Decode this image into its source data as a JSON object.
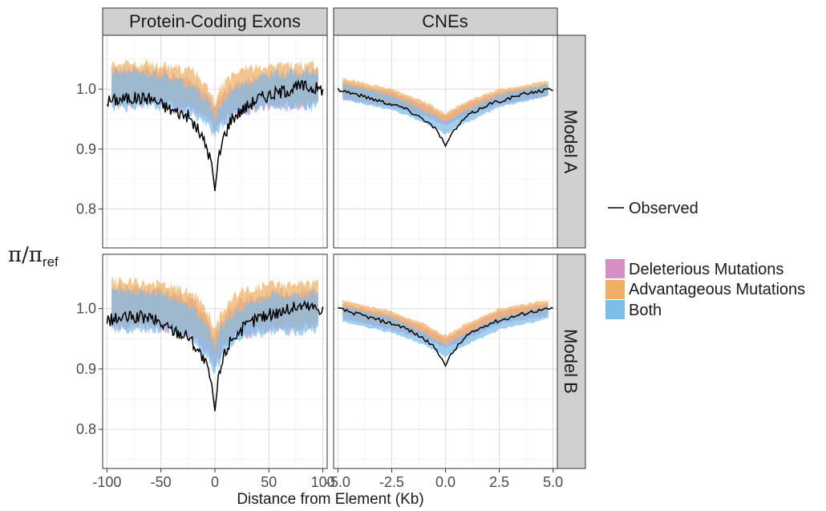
{
  "chart_data": {
    "type": "line",
    "y_label": "π/π",
    "y_label_sub": "ref",
    "x_label": "Distance from Element (Kb)",
    "columns": [
      {
        "strip": "Protein-Coding Exons",
        "xlim": [
          -104,
          104
        ],
        "xticks": [
          -100,
          -50,
          0,
          50,
          100
        ],
        "xtick_labels": [
          "-100",
          "-50",
          "0",
          "50",
          "100"
        ]
      },
      {
        "strip": "CNEs",
        "xlim": [
          -5.2,
          5.2
        ],
        "xticks": [
          -5,
          -2.5,
          0,
          2.5,
          5
        ],
        "xtick_labels": [
          "-5.0",
          "-2.5",
          "0.0",
          "2.5",
          "5.0"
        ]
      }
    ],
    "rows": [
      {
        "strip": "Model A"
      },
      {
        "strip": "Model B"
      }
    ],
    "ylim": [
      0.735,
      1.09
    ],
    "yticks": [
      0.8,
      0.9,
      1.0
    ],
    "ytick_labels": [
      "0.8",
      "0.9",
      "1.0"
    ],
    "grid": true,
    "legend": {
      "position": "right",
      "line_entry": {
        "label": "Observed",
        "color": "#000000"
      },
      "fill_entries": [
        {
          "label": "Deleterious Mutations",
          "color": "#d58fc4"
        },
        {
          "label": "Advantageous Mutations",
          "color": "#eeb065"
        },
        {
          "label": "Both",
          "color": "#7fbde9"
        }
      ]
    },
    "panels": [
      {
        "row": 0,
        "col": 0,
        "observed": {
          "x": [
            -100,
            -80,
            -60,
            -40,
            -25,
            -15,
            -8,
            -3,
            0,
            3,
            8,
            15,
            25,
            40,
            60,
            80,
            100
          ],
          "y": [
            0.98,
            0.985,
            0.985,
            0.965,
            0.955,
            0.93,
            0.905,
            0.875,
            0.83,
            0.88,
            0.92,
            0.95,
            0.965,
            0.985,
            0.995,
            1.005,
            1.0
          ]
        },
        "bands": [
          {
            "name": "Deleterious Mutations",
            "x": [
              -100,
              -50,
              -20,
              -5,
              0,
              5,
              20,
              50,
              100
            ],
            "lower": [
              0.975,
              0.975,
              0.965,
              0.945,
              0.93,
              0.945,
              0.96,
              0.97,
              0.975
            ],
            "upper": [
              1.035,
              1.03,
              1.015,
              0.985,
              0.965,
              0.99,
              1.01,
              1.025,
              1.03
            ]
          },
          {
            "name": "Advantageous Mutations",
            "x": [
              -100,
              -50,
              -20,
              -5,
              0,
              5,
              20,
              50,
              100
            ],
            "lower": [
              0.98,
              0.98,
              0.975,
              0.955,
              0.94,
              0.955,
              0.975,
              0.98,
              0.975
            ],
            "upper": [
              1.045,
              1.04,
              1.03,
              1.0,
              0.975,
              1.0,
              1.03,
              1.04,
              1.04
            ]
          },
          {
            "name": "Both",
            "x": [
              -100,
              -50,
              -20,
              -5,
              0,
              5,
              20,
              50,
              100
            ],
            "lower": [
              0.97,
              0.97,
              0.96,
              0.935,
              0.918,
              0.935,
              0.96,
              0.97,
              0.97
            ],
            "upper": [
              1.03,
              1.025,
              1.005,
              0.975,
              0.95,
              0.975,
              1.005,
              1.025,
              1.03
            ]
          }
        ]
      },
      {
        "row": 0,
        "col": 1,
        "observed": {
          "x": [
            -5,
            -4,
            -3,
            -2,
            -1,
            -0.5,
            -0.2,
            0,
            0.2,
            0.5,
            1,
            2,
            3,
            4,
            5
          ],
          "y": [
            1.0,
            0.99,
            0.98,
            0.97,
            0.95,
            0.935,
            0.92,
            0.905,
            0.92,
            0.935,
            0.955,
            0.975,
            0.985,
            0.995,
            1.0
          ]
        },
        "bands": [
          {
            "name": "Deleterious Mutations",
            "x": [
              -5,
              -2.5,
              -1,
              0,
              1,
              2.5,
              5
            ],
            "lower": [
              0.985,
              0.97,
              0.955,
              0.94,
              0.955,
              0.975,
              0.99
            ],
            "upper": [
              1.015,
              0.995,
              0.975,
              0.955,
              0.975,
              0.995,
              1.01
            ]
          },
          {
            "name": "Advantageous Mutations",
            "x": [
              -5,
              -2.5,
              -1,
              0,
              1,
              2.5,
              5
            ],
            "lower": [
              0.99,
              0.975,
              0.96,
              0.945,
              0.96,
              0.98,
              0.995
            ],
            "upper": [
              1.02,
              1.0,
              0.98,
              0.96,
              0.98,
              1.0,
              1.015
            ]
          },
          {
            "name": "Both",
            "x": [
              -5,
              -2.5,
              -1,
              0,
              1,
              2.5,
              5
            ],
            "lower": [
              0.985,
              0.965,
              0.945,
              0.925,
              0.945,
              0.97,
              0.99
            ],
            "upper": [
              1.01,
              0.99,
              0.965,
              0.945,
              0.965,
              0.99,
              1.01
            ]
          }
        ]
      },
      {
        "row": 1,
        "col": 0,
        "observed": {
          "x": [
            -100,
            -80,
            -60,
            -40,
            -25,
            -15,
            -8,
            -3,
            0,
            3,
            8,
            15,
            25,
            40,
            60,
            80,
            100
          ],
          "y": [
            0.98,
            0.985,
            0.985,
            0.965,
            0.955,
            0.93,
            0.905,
            0.875,
            0.83,
            0.88,
            0.92,
            0.95,
            0.965,
            0.985,
            0.995,
            1.005,
            1.0
          ]
        },
        "bands": [
          {
            "name": "Deleterious Mutations",
            "x": [
              -100,
              -50,
              -20,
              -5,
              0,
              5,
              20,
              50,
              100
            ],
            "lower": [
              0.97,
              0.97,
              0.955,
              0.925,
              0.905,
              0.925,
              0.955,
              0.965,
              0.97
            ],
            "upper": [
              1.035,
              1.03,
              1.01,
              0.975,
              0.95,
              0.975,
              1.01,
              1.025,
              1.03
            ]
          },
          {
            "name": "Advantageous Mutations",
            "x": [
              -100,
              -50,
              -20,
              -5,
              0,
              5,
              20,
              50,
              100
            ],
            "lower": [
              0.975,
              0.975,
              0.965,
              0.94,
              0.915,
              0.94,
              0.965,
              0.975,
              0.975
            ],
            "upper": [
              1.045,
              1.04,
              1.025,
              0.99,
              0.96,
              0.99,
              1.025,
              1.04,
              1.04
            ]
          },
          {
            "name": "Both",
            "x": [
              -100,
              -50,
              -20,
              -5,
              0,
              5,
              20,
              50,
              100
            ],
            "lower": [
              0.965,
              0.965,
              0.95,
              0.915,
              0.895,
              0.915,
              0.95,
              0.96,
              0.965
            ],
            "upper": [
              1.03,
              1.025,
              1.0,
              0.965,
              0.935,
              0.965,
              1.0,
              1.02,
              1.025
            ]
          }
        ]
      },
      {
        "row": 1,
        "col": 1,
        "observed": {
          "x": [
            -5,
            -4,
            -3,
            -2,
            -1,
            -0.5,
            -0.2,
            0,
            0.2,
            0.5,
            1,
            2,
            3,
            4,
            5
          ],
          "y": [
            1.0,
            0.99,
            0.98,
            0.97,
            0.95,
            0.935,
            0.92,
            0.905,
            0.92,
            0.935,
            0.955,
            0.975,
            0.985,
            0.995,
            1.0
          ]
        },
        "bands": [
          {
            "name": "Deleterious Mutations",
            "x": [
              -5,
              -2.5,
              -1,
              0,
              1,
              2.5,
              5
            ],
            "lower": [
              0.985,
              0.965,
              0.95,
              0.935,
              0.95,
              0.975,
              0.99
            ],
            "upper": [
              1.01,
              0.99,
              0.97,
              0.95,
              0.97,
              0.995,
              1.01
            ]
          },
          {
            "name": "Advantageous Mutations",
            "x": [
              -5,
              -2.5,
              -1,
              0,
              1,
              2.5,
              5
            ],
            "lower": [
              0.99,
              0.97,
              0.955,
              0.94,
              0.955,
              0.98,
              0.995
            ],
            "upper": [
              1.015,
              0.995,
              0.975,
              0.955,
              0.975,
              1.0,
              1.015
            ]
          },
          {
            "name": "Both",
            "x": [
              -5,
              -2.5,
              -1,
              0,
              1,
              2.5,
              5
            ],
            "lower": [
              0.98,
              0.96,
              0.94,
              0.92,
              0.94,
              0.965,
              0.985
            ],
            "upper": [
              1.005,
              0.985,
              0.96,
              0.94,
              0.96,
              0.985,
              1.005
            ]
          }
        ]
      }
    ]
  }
}
